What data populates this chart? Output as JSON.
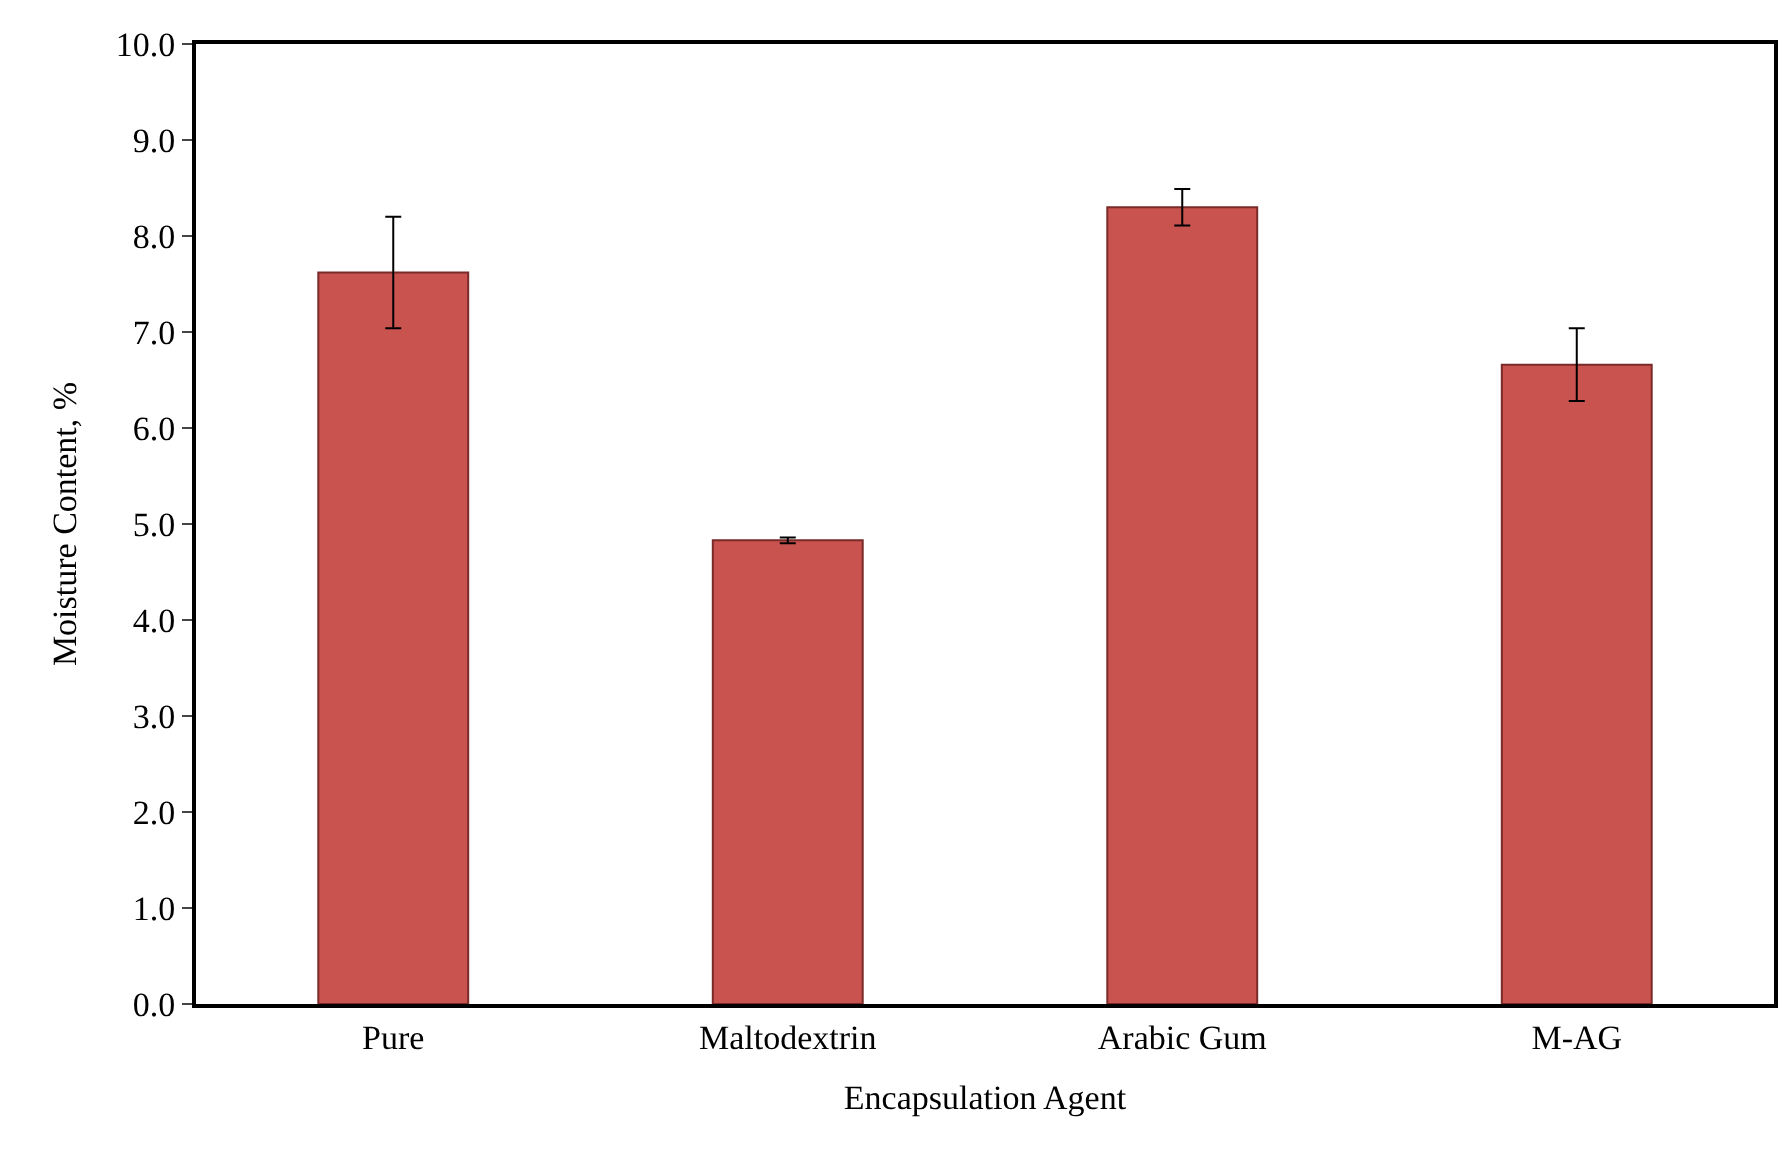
{
  "chart_data": {
    "type": "bar",
    "xlabel": "Encapsulation Agent",
    "ylabel": "Moisture Content, %",
    "categories": [
      "Pure",
      "Maltodextrin",
      "Arabic Gum",
      "M-AG"
    ],
    "values": [
      7.62,
      4.83,
      8.3,
      6.66
    ],
    "errors": [
      0.58,
      0.03,
      0.19,
      0.38
    ],
    "color": "#c9534f",
    "ylim": [
      0,
      10
    ],
    "yticks": [
      {
        "value": 0,
        "label": "0.0"
      },
      {
        "value": 1,
        "label": "1.0"
      },
      {
        "value": 2,
        "label": "2.0"
      },
      {
        "value": 3,
        "label": "3.0"
      },
      {
        "value": 4,
        "label": "4.0"
      },
      {
        "value": 5,
        "label": "5.0"
      },
      {
        "value": 6,
        "label": "6.0"
      },
      {
        "value": 7,
        "label": "7.0"
      },
      {
        "value": 8,
        "label": "8.0"
      },
      {
        "value": 9,
        "label": "9.0"
      },
      {
        "value": 10,
        "label": "10.0"
      }
    ]
  }
}
